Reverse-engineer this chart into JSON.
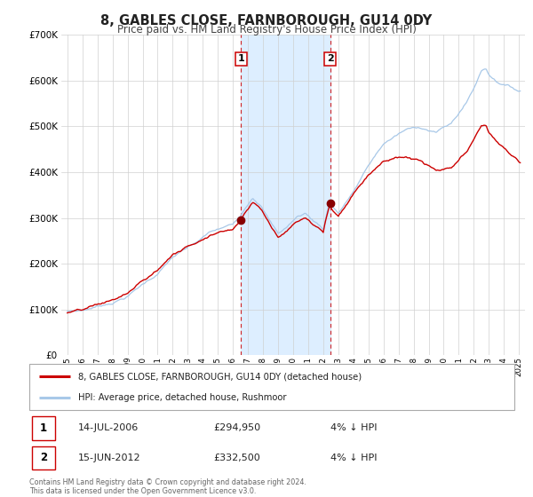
{
  "title": "8, GABLES CLOSE, FARNBOROUGH, GU14 0DY",
  "subtitle": "Price paid vs. HM Land Registry's House Price Index (HPI)",
  "legend_label_red": "8, GABLES CLOSE, FARNBOROUGH, GU14 0DY (detached house)",
  "legend_label_blue": "HPI: Average price, detached house, Rushmoor",
  "footnote": "Contains HM Land Registry data © Crown copyright and database right 2024.\nThis data is licensed under the Open Government Licence v3.0.",
  "sale1_date": "14-JUL-2006",
  "sale1_price": 294950,
  "sale1_pct": "4% ↓ HPI",
  "sale2_date": "15-JUN-2012",
  "sale2_price": 332500,
  "sale2_pct": "4% ↓ HPI",
  "sale1_year": 2006.54,
  "sale2_year": 2012.46,
  "hpi_color": "#a8c8e8",
  "price_color": "#cc0000",
  "sale_marker_color": "#880000",
  "shading_color": "#ddeeff",
  "background_color": "#ffffff",
  "grid_color": "#d0d0d0",
  "ylim_min": 0,
  "ylim_max": 700000,
  "xlim_min": 1994.6,
  "xlim_max": 2025.4
}
